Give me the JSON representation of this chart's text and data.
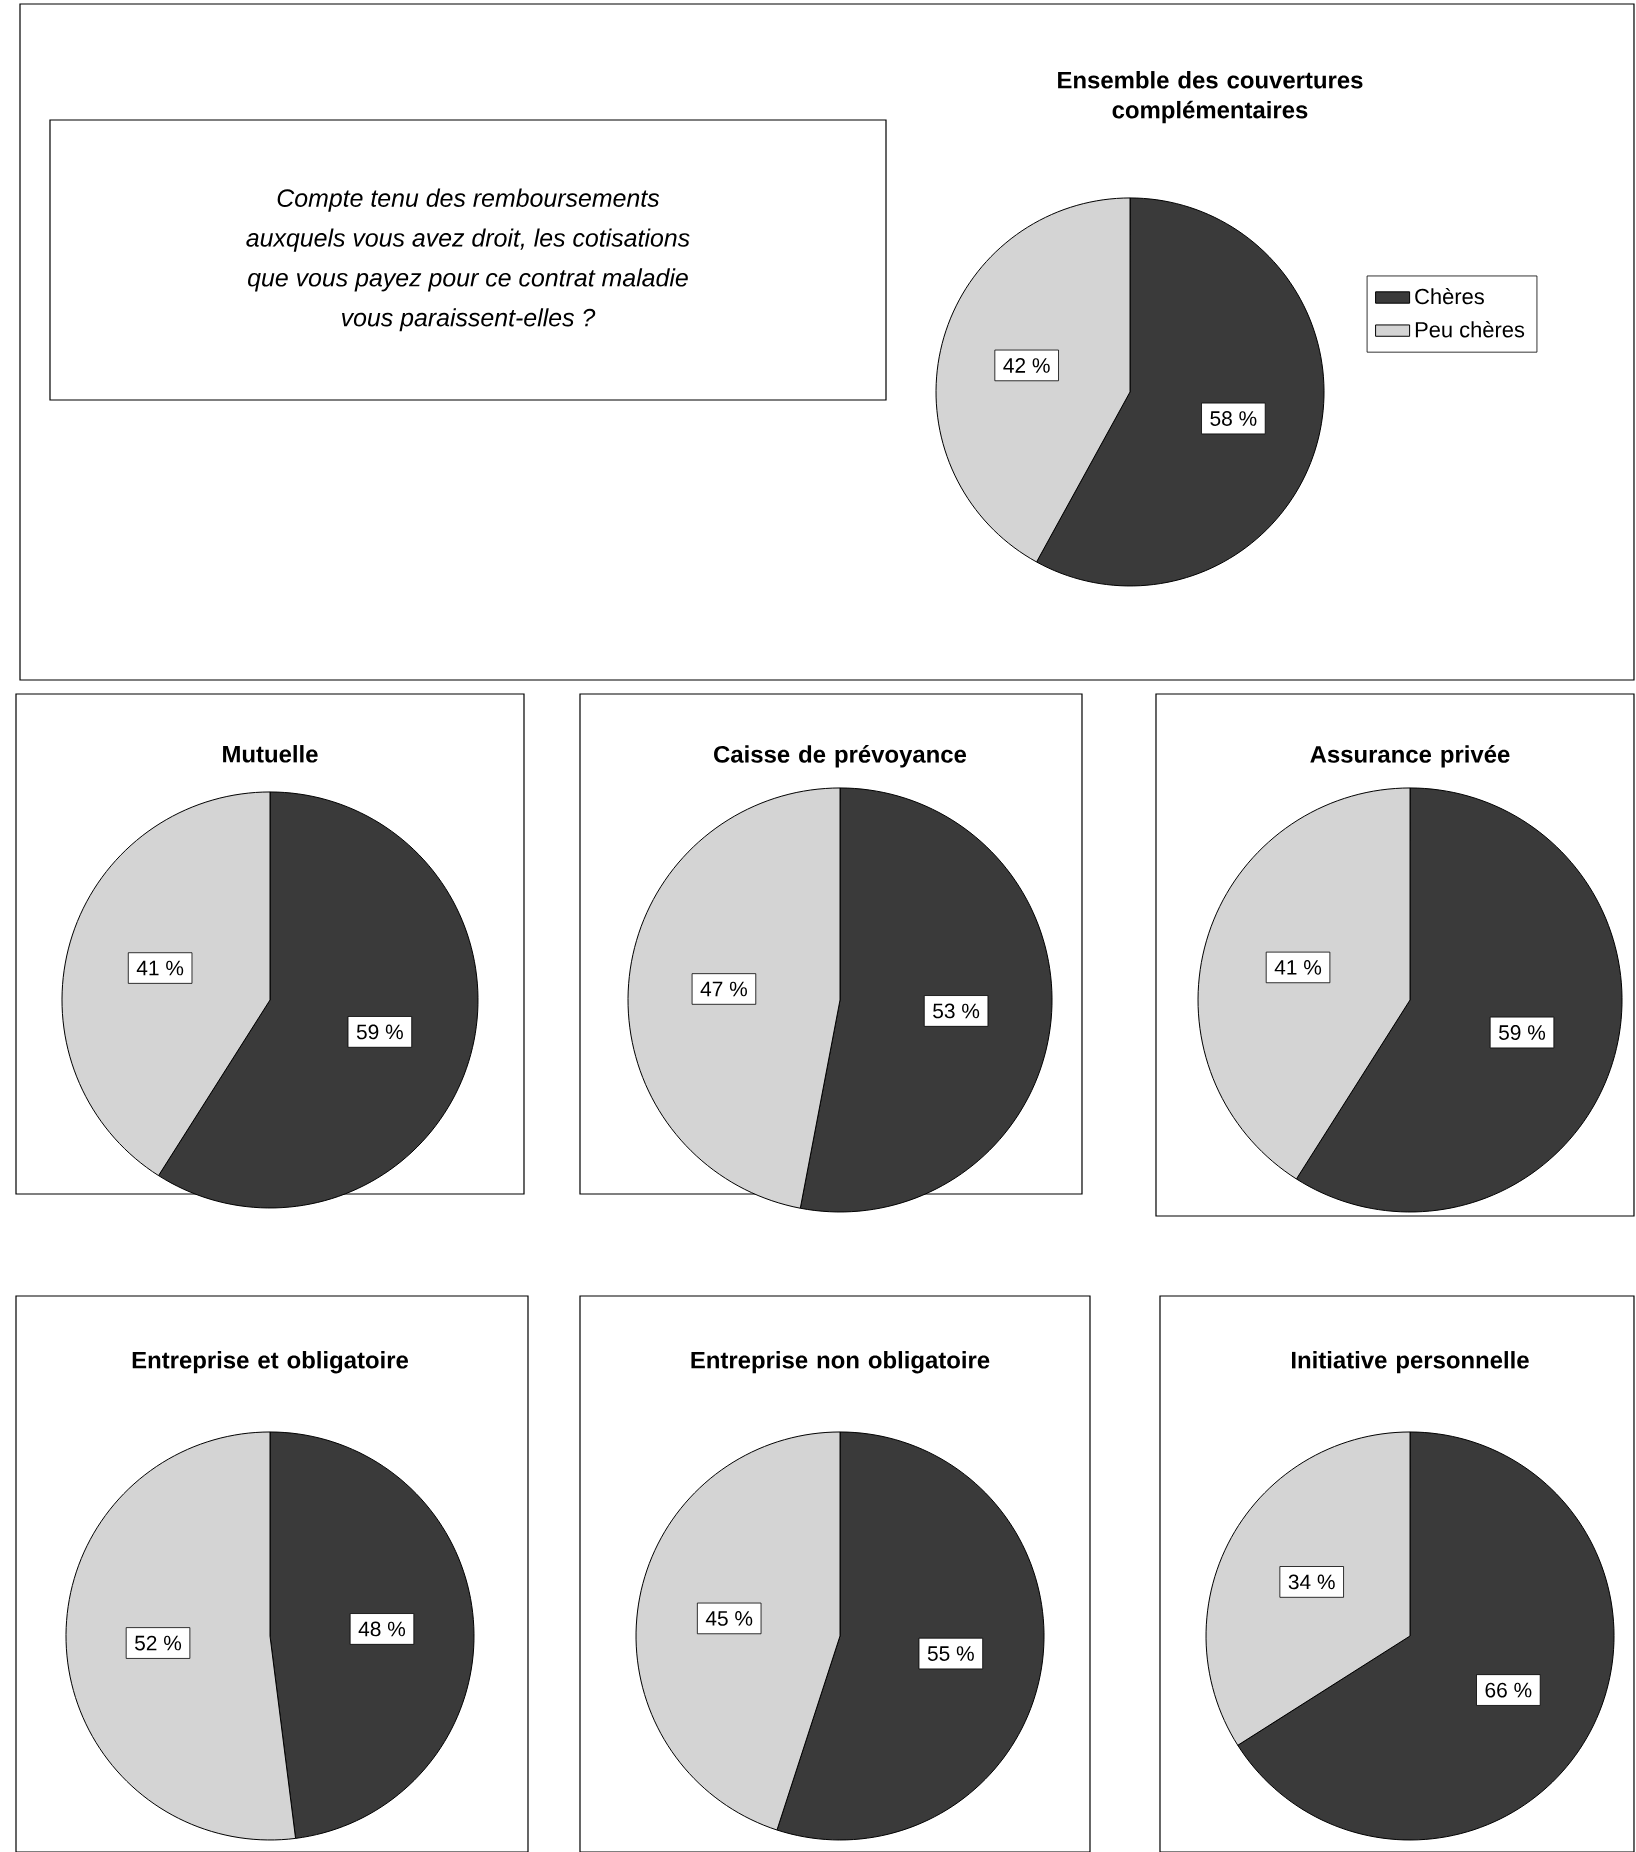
{
  "chart_data": [
    {
      "type": "pie",
      "title": "Ensemble des couvertures complémentaires",
      "categories": [
        "Chères",
        "Peu chères"
      ],
      "values": [
        58,
        42
      ],
      "value_labels": [
        "58 %",
        "42 %"
      ],
      "colors": [
        "#3a3a3a",
        "#d4d4d4"
      ],
      "legend": "right",
      "annotations": [
        "Compte tenu des remboursements auxquels vous avez droit, les cotisations que vous payez pour ce contrat maladie vous paraissent-elles ?"
      ]
    },
    {
      "type": "pie",
      "title": "Mutuelle",
      "categories": [
        null,
        null
      ],
      "values": [
        59,
        41
      ],
      "value_labels": [
        "59 %",
        "41 %"
      ],
      "colors": [
        "#3a3a3a",
        "#d4d4d4"
      ]
    },
    {
      "type": "pie",
      "title": "Caisse de prévoyance",
      "categories": [
        null,
        null
      ],
      "values": [
        53,
        47
      ],
      "value_labels": [
        "53 %",
        "47 %"
      ],
      "colors": [
        "#3a3a3a",
        "#d4d4d4"
      ]
    },
    {
      "type": "pie",
      "title": "Assurance privée",
      "categories": [
        null,
        null
      ],
      "values": [
        59,
        41
      ],
      "value_labels": [
        "59 %",
        "41 %"
      ],
      "colors": [
        "#3a3a3a",
        "#d4d4d4"
      ]
    },
    {
      "type": "pie",
      "title": "Entreprise et obligatoire",
      "categories": [
        null,
        null
      ],
      "values": [
        48,
        52
      ],
      "value_labels": [
        "48 %",
        "52 %"
      ],
      "colors": [
        "#3a3a3a",
        "#d4d4d4"
      ]
    },
    {
      "type": "pie",
      "title": "Entreprise non obligatoire",
      "categories": [
        null,
        null
      ],
      "values": [
        55,
        45
      ],
      "value_labels": [
        "55 %",
        "45 %"
      ],
      "colors": [
        "#3a3a3a",
        "#d4d4d4"
      ]
    },
    {
      "type": "pie",
      "title": "Initiative personnelle",
      "categories": [
        null,
        null
      ],
      "values": [
        66,
        34
      ],
      "value_labels": [
        "66 %",
        "34 %"
      ],
      "colors": [
        "#3a3a3a",
        "#d4d4d4"
      ]
    }
  ]
}
